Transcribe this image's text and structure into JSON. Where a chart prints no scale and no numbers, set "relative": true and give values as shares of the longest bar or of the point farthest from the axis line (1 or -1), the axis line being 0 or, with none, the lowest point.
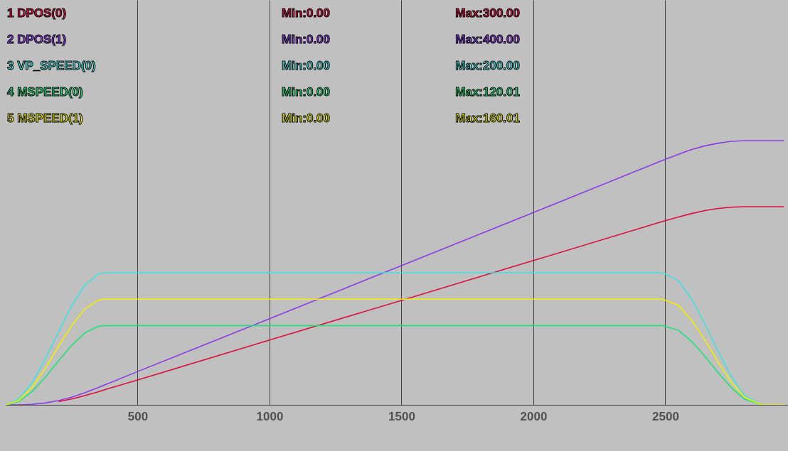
{
  "chart_data": {
    "type": "line",
    "relative": true,
    "x": [
      0,
      50,
      100,
      150,
      200,
      250,
      300,
      350,
      375,
      500,
      1000,
      1500,
      2000,
      2490,
      2550,
      2600,
      2650,
      2700,
      2750,
      2800,
      2865,
      2950
    ],
    "xlim": [
      0,
      2965
    ],
    "xticks": [
      500,
      1000,
      1500,
      2000,
      2500
    ],
    "series": [
      {
        "name": "1 DPOS(0)",
        "color": "#d8103c",
        "values": [
          null,
          null,
          null,
          null,
          0.012,
          0.022,
          0.035,
          0.049,
          0.057,
          0.094,
          0.245,
          0.395,
          0.546,
          0.694,
          0.711,
          0.724,
          0.735,
          0.743,
          0.748,
          0.75,
          0.75,
          0.75
        ]
      },
      {
        "name": "2 DPOS(1)",
        "color": "#8a3ee0",
        "values": [
          0,
          0,
          0.002,
          0.007,
          0.016,
          0.029,
          0.046,
          0.065,
          0.075,
          0.126,
          0.326,
          0.527,
          0.728,
          0.925,
          0.948,
          0.966,
          0.98,
          0.99,
          0.997,
          1,
          1,
          1
        ]
      },
      {
        "name": "3 VP_SPEED(0)",
        "color": "#40e0e0",
        "values": [
          0,
          0.022,
          0.083,
          0.173,
          0.276,
          0.375,
          0.453,
          0.495,
          0.5,
          0.5,
          0.5,
          0.5,
          0.5,
          0.5,
          0.47,
          0.4,
          0.307,
          0.203,
          0.108,
          0.036,
          0,
          null
        ]
      },
      {
        "name": "4 MSPEED(0)",
        "color": "#20e078",
        "values": [
          0,
          0.013,
          0.05,
          0.104,
          0.166,
          0.225,
          0.272,
          0.297,
          0.3,
          0.3,
          0.3,
          0.3,
          0.3,
          0.3,
          0.282,
          0.24,
          0.184,
          0.122,
          0.065,
          0.022,
          0,
          null
        ]
      },
      {
        "name": "5 MSPEED(1)",
        "color": "#f0f000",
        "values": [
          0,
          0.017,
          0.066,
          0.138,
          0.221,
          0.3,
          0.362,
          0.396,
          0.4,
          0.4,
          0.4,
          0.4,
          0.4,
          0.4,
          0.376,
          0.32,
          0.245,
          0.162,
          0.086,
          0.029,
          0,
          0
        ]
      }
    ],
    "annotations": [
      "Min:0.00",
      "Max:300.00",
      "Min:0.00",
      "Max:400.00",
      "Min:0.00",
      "Max:200.00",
      "Min:0.00",
      "Max:120.01",
      "Min:0.00",
      "Max:160.01"
    ],
    "grid": "x",
    "legend": "top left",
    "marker": "none",
    "line_style": "solid"
  }
}
